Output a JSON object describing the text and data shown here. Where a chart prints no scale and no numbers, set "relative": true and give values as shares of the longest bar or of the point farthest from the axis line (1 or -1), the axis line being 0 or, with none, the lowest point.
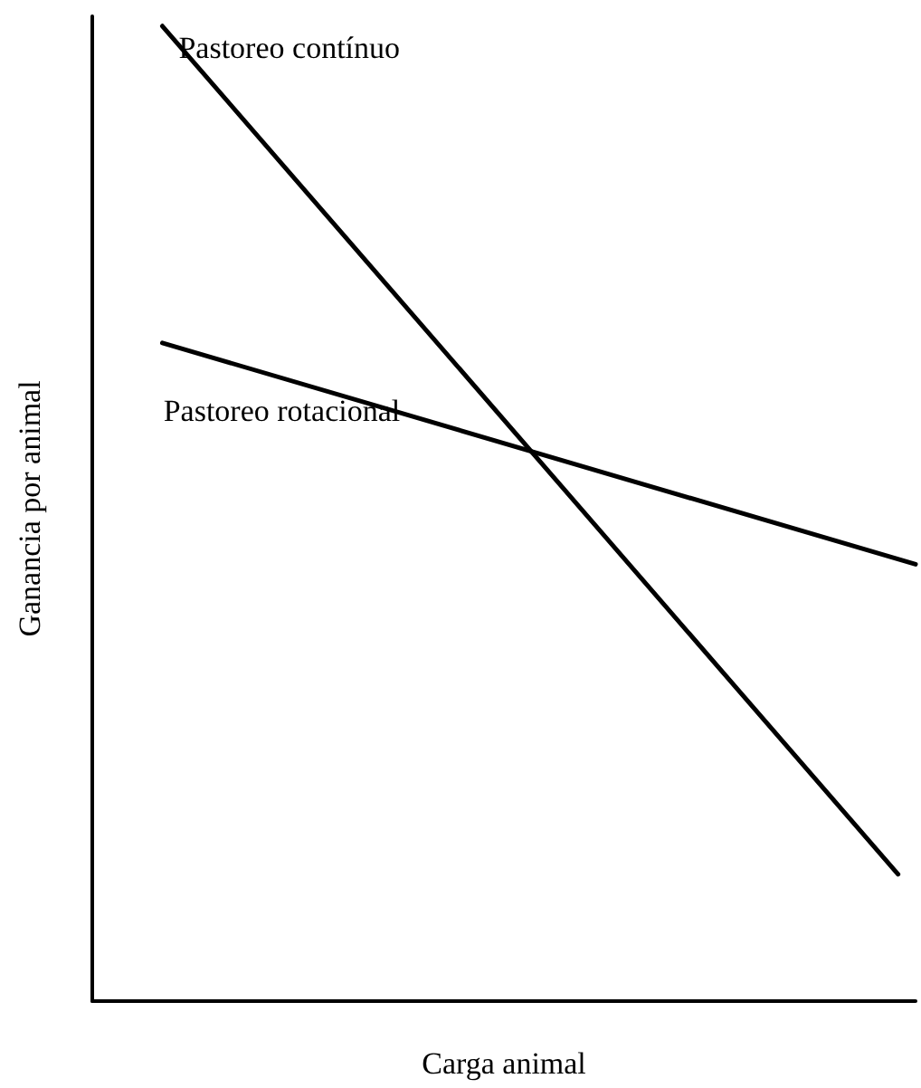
{
  "chart_data": {
    "type": "line",
    "relative": true,
    "xlabel": "Carga animal",
    "ylabel": "Ganancia por animal",
    "categories": [
      null,
      null,
      null,
      null,
      null,
      null,
      null,
      null,
      null,
      null,
      null,
      null,
      null,
      null,
      null,
      null,
      null,
      null,
      null,
      null,
      null,
      null,
      null,
      null,
      null,
      null,
      null,
      null,
      null,
      null,
      null,
      null,
      null,
      null,
      null,
      null,
      null,
      null,
      null,
      null,
      null,
      null,
      null,
      null,
      null,
      null,
      null,
      null
    ],
    "grid": false,
    "legend": false,
    "marker": "none",
    "line_style": "solid",
    "series": [
      {
        "name": "Pastoreo contínuo",
        "color": "#000000",
        "values": [
          null,
          null,
          null,
          null,
          1,
          null,
          null,
          null,
          null,
          null,
          null,
          null,
          null,
          null,
          null,
          null,
          null,
          null,
          null,
          null,
          null,
          null,
          null,
          null,
          null,
          null,
          null,
          null,
          null,
          null,
          null,
          null,
          null,
          null,
          null,
          null,
          null,
          null,
          null,
          null,
          null,
          null,
          null,
          null,
          null,
          null,
          0.13,
          null
        ]
      },
      {
        "name": "Pastoreo rotacional",
        "color": "#000000",
        "values": [
          null,
          null,
          null,
          null,
          0.675,
          null,
          null,
          null,
          null,
          null,
          null,
          null,
          null,
          null,
          null,
          null,
          null,
          null,
          null,
          null,
          null,
          null,
          null,
          null,
          null,
          null,
          null,
          null,
          null,
          null,
          null,
          null,
          null,
          null,
          null,
          null,
          null,
          null,
          null,
          null,
          null,
          null,
          null,
          null,
          null,
          null,
          null,
          0.448
        ]
      }
    ]
  }
}
